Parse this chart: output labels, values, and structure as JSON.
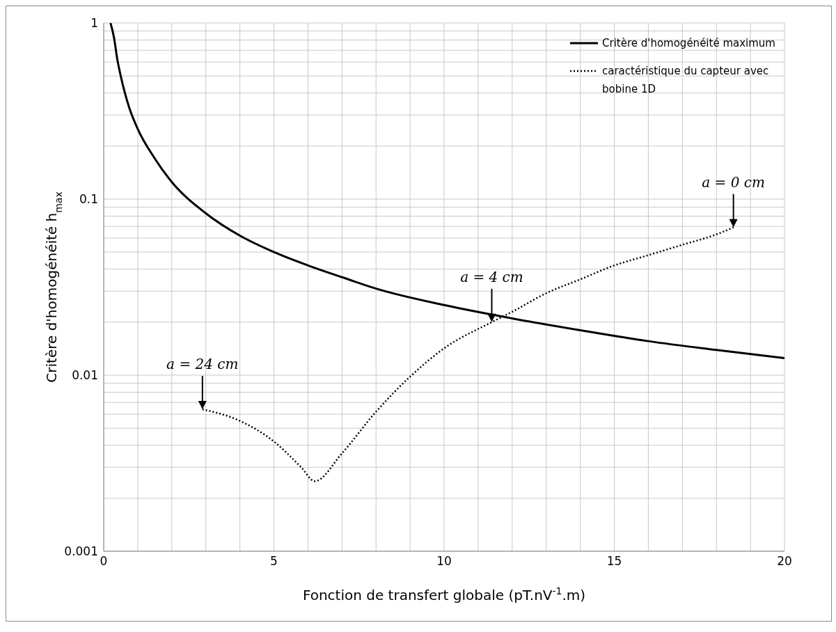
{
  "chart_data": {
    "type": "line",
    "xlabel": "Fonction de transfert globale (pT.nV$^{-1}$.m)",
    "ylabel": "Critère d'homogénéité h$_{max}$",
    "series": [
      {
        "name": "Critère d'homogénéité maximum",
        "color": "#000000",
        "line_style": "solid",
        "x": [
          0.2,
          0.3,
          0.4,
          0.5,
          0.75,
          1,
          1.5,
          2,
          3,
          4,
          5,
          6,
          7,
          8,
          10,
          12,
          14,
          16,
          18,
          20
        ],
        "values": [
          1,
          0.83,
          0.62,
          0.5,
          0.33,
          0.25,
          0.17,
          0.125,
          0.083,
          0.062,
          0.05,
          0.042,
          0.036,
          0.031,
          0.025,
          0.021,
          0.018,
          0.0156,
          0.0139,
          0.0125
        ]
      },
      {
        "name": "caractéristique du capteur avec bobine 1D",
        "color": "#000000",
        "line_style": "dotted",
        "x": [
          2.9,
          4,
          5,
          5.8,
          6.2,
          7,
          8,
          9,
          10,
          11.4,
          12,
          13,
          14,
          15,
          16,
          17,
          18,
          18.5
        ],
        "values": [
          0.0064,
          0.0055,
          0.0042,
          0.003,
          0.0025,
          0.0036,
          0.0062,
          0.0098,
          0.0142,
          0.02,
          0.0229,
          0.0292,
          0.035,
          0.042,
          0.048,
          0.055,
          0.063,
          0.069
        ]
      }
    ],
    "annotations": [
      {
        "text": "a = 0 cm",
        "x": 18.5,
        "y": 0.069
      },
      {
        "text": "a = 4 cm",
        "x": 11.4,
        "y": 0.02
      },
      {
        "text": "a = 24 cm",
        "x": 2.9,
        "y": 0.0064
      }
    ],
    "xlim": [
      0,
      20
    ],
    "xticks": [
      0,
      {
        "value": 1,
        "label": null
      },
      {
        "value": 2,
        "label": null
      },
      {
        "value": 3,
        "label": null
      },
      {
        "value": 4,
        "label": null
      },
      5,
      {
        "value": 6,
        "label": null
      },
      {
        "value": 7,
        "label": null
      },
      {
        "value": 8,
        "label": null
      },
      {
        "value": 9,
        "label": null
      },
      10,
      {
        "value": 11,
        "label": null
      },
      {
        "value": 12,
        "label": null
      },
      {
        "value": 13,
        "label": null
      },
      {
        "value": 14,
        "label": null
      },
      15,
      {
        "value": 16,
        "label": null
      },
      {
        "value": 17,
        "label": null
      },
      {
        "value": 18,
        "label": null
      },
      {
        "value": 19,
        "label": null
      },
      20
    ],
    "ylim": [
      0.001,
      1
    ],
    "yticks": [
      0.001,
      {
        "value": 0.002,
        "label": null
      },
      {
        "value": 0.003,
        "label": null
      },
      {
        "value": 0.004,
        "label": null
      },
      {
        "value": 0.005,
        "label": null
      },
      {
        "value": 0.006,
        "label": null
      },
      {
        "value": 0.007,
        "label": null
      },
      {
        "value": 0.008,
        "label": null
      },
      {
        "value": 0.009,
        "label": null
      },
      0.01,
      {
        "value": 0.02,
        "label": null
      },
      {
        "value": 0.03,
        "label": null
      },
      {
        "value": 0.04,
        "label": null
      },
      {
        "value": 0.05,
        "label": null
      },
      {
        "value": 0.06,
        "label": null
      },
      {
        "value": 0.07,
        "label": null
      },
      {
        "value": 0.08,
        "label": null
      },
      {
        "value": 0.09,
        "label": null
      },
      0.1,
      {
        "value": 0.2,
        "label": null
      },
      {
        "value": 0.3,
        "label": null
      },
      {
        "value": 0.4,
        "label": null
      },
      {
        "value": 0.5,
        "label": null
      },
      {
        "value": 0.6,
        "label": null
      },
      {
        "value": 0.7,
        "label": null
      },
      {
        "value": 0.8,
        "label": null
      },
      {
        "value": 0.9,
        "label": null
      },
      1
    ],
    "log": "y",
    "grid": true,
    "legend": "top right",
    "marker": "none"
  }
}
